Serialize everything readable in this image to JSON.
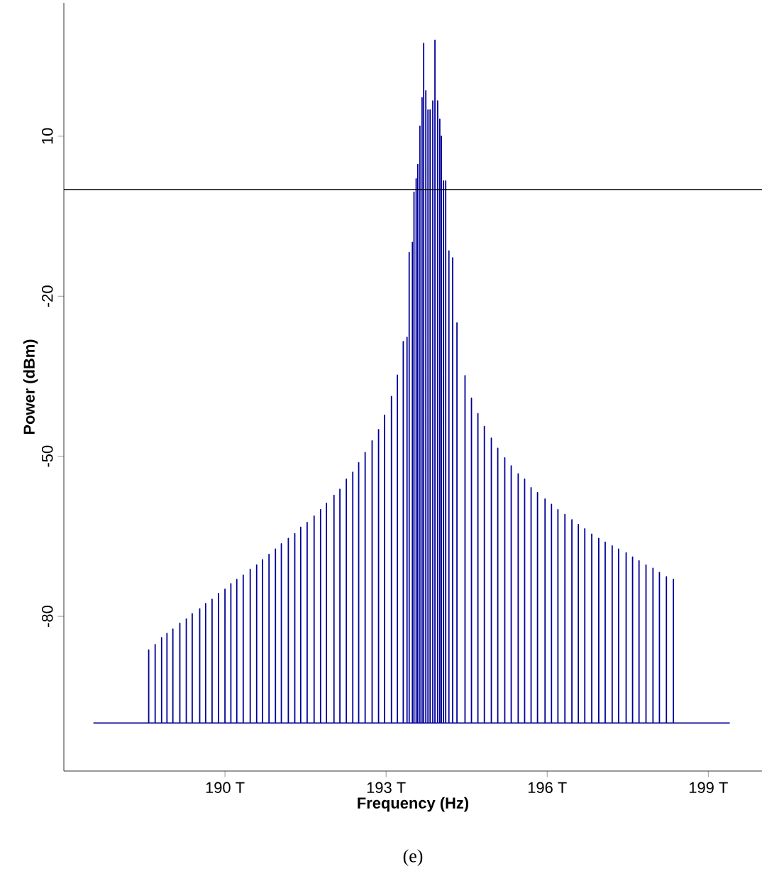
{
  "chart_data": {
    "type": "line",
    "xlabel": "Frequency (Hz)",
    "ylabel": "Power (dBm)",
    "annotations": [
      "(e)"
    ],
    "xlim": [
      187,
      200
    ],
    "ylim": [
      -109,
      35
    ],
    "xticks": [
      {
        "value": 190,
        "label": "190 T"
      },
      {
        "value": 193,
        "label": "193 T"
      },
      {
        "value": 196,
        "label": "196 T"
      },
      {
        "value": 199,
        "label": "199 T"
      }
    ],
    "yticks": [
      10,
      -20,
      -50,
      -80
    ],
    "ref_lines": [
      {
        "axis": "y",
        "value": 0,
        "color": "#000000"
      }
    ],
    "grid": false,
    "marker": "none",
    "line_style": "solid",
    "series": [
      {
        "color": "#000099",
        "x": [
          187.55,
          188.58,
          188.58,
          188.58,
          188.7,
          188.7,
          188.7,
          188.82,
          188.82,
          188.82,
          188.92,
          188.92,
          188.92,
          189.03,
          189.03,
          189.03,
          189.16,
          189.16,
          189.16,
          189.28,
          189.28,
          189.28,
          189.39,
          189.39,
          189.39,
          189.53,
          189.53,
          189.53,
          189.64,
          189.64,
          189.64,
          189.76,
          189.76,
          189.76,
          189.88,
          189.88,
          189.88,
          190.0,
          190.0,
          190.0,
          190.11,
          190.11,
          190.11,
          190.22,
          190.22,
          190.22,
          190.34,
          190.34,
          190.34,
          190.47,
          190.47,
          190.47,
          190.59,
          190.59,
          190.59,
          190.7,
          190.7,
          190.7,
          190.82,
          190.82,
          190.82,
          190.94,
          190.94,
          190.94,
          191.05,
          191.05,
          191.05,
          191.18,
          191.18,
          191.18,
          191.3,
          191.3,
          191.3,
          191.41,
          191.41,
          191.41,
          191.53,
          191.53,
          191.53,
          191.66,
          191.66,
          191.66,
          191.78,
          191.78,
          191.78,
          191.89,
          191.89,
          191.89,
          192.03,
          192.03,
          192.03,
          192.14,
          192.14,
          192.14,
          192.26,
          192.26,
          192.26,
          192.38,
          192.38,
          192.38,
          192.49,
          192.49,
          192.49,
          192.61,
          192.61,
          192.61,
          192.74,
          192.74,
          192.74,
          192.86,
          192.86,
          192.86,
          192.97,
          192.97,
          192.97,
          193.1,
          193.1,
          193.1,
          193.21,
          193.21,
          193.21,
          193.32,
          193.32,
          193.32,
          193.39,
          193.39,
          193.39,
          193.43,
          193.43,
          193.43,
          193.49,
          193.49,
          193.49,
          193.52,
          193.52,
          193.52,
          193.56,
          193.56,
          193.56,
          193.59,
          193.59,
          193.59,
          193.63,
          193.63,
          193.63,
          193.67,
          193.67,
          193.67,
          193.7,
          193.7,
          193.7,
          193.74,
          193.74,
          193.74,
          193.78,
          193.78,
          193.78,
          193.82,
          193.82,
          193.82,
          193.87,
          193.87,
          193.87,
          193.91,
          193.91,
          193.91,
          193.96,
          193.96,
          193.96,
          194.0,
          194.0,
          194.0,
          194.03,
          194.03,
          194.03,
          194.07,
          194.07,
          194.07,
          194.11,
          194.11,
          194.11,
          194.17,
          194.17,
          194.17,
          194.24,
          194.24,
          194.24,
          194.32,
          194.32,
          194.32,
          194.47,
          194.47,
          194.47,
          194.59,
          194.59,
          194.59,
          194.71,
          194.71,
          194.71,
          194.83,
          194.83,
          194.83,
          194.96,
          194.96,
          194.96,
          195.08,
          195.08,
          195.08,
          195.21,
          195.21,
          195.21,
          195.33,
          195.33,
          195.33,
          195.46,
          195.46,
          195.46,
          195.58,
          195.58,
          195.58,
          195.7,
          195.7,
          195.7,
          195.82,
          195.82,
          195.82,
          195.96,
          195.96,
          195.96,
          196.08,
          196.08,
          196.08,
          196.2,
          196.2,
          196.2,
          196.33,
          196.33,
          196.33,
          196.46,
          196.46,
          196.46,
          196.58,
          196.58,
          196.58,
          196.7,
          196.7,
          196.7,
          196.83,
          196.83,
          196.83,
          196.96,
          196.96,
          196.96,
          197.08,
          197.08,
          197.08,
          197.21,
          197.21,
          197.21,
          197.33,
          197.33,
          197.33,
          197.47,
          197.47,
          197.47,
          197.59,
          197.59,
          197.59,
          197.71,
          197.71,
          197.71,
          197.84,
          197.84,
          197.84,
          197.97,
          197.97,
          197.97,
          198.09,
          198.09,
          198.09,
          198.22,
          198.22,
          198.22,
          198.35,
          198.35,
          198.35,
          199.4
        ],
        "values": [
          -100,
          -100,
          -86.3,
          -100,
          -100,
          -85.3,
          -100,
          -100,
          -84.0,
          -100,
          -100,
          -83.2,
          -100,
          -100,
          -82.4,
          -100,
          -100,
          -81.3,
          -100,
          -100,
          -80.5,
          -100,
          -100,
          -79.5,
          -100,
          -100,
          -78.6,
          -100,
          -100,
          -77.6,
          -100,
          -100,
          -76.8,
          -100,
          -100,
          -75.7,
          -100,
          -100,
          -74.9,
          -100,
          -100,
          -73.9,
          -100,
          -100,
          -73.1,
          -100,
          -100,
          -72.3,
          -100,
          -100,
          -71.2,
          -100,
          -100,
          -70.4,
          -100,
          -100,
          -69.4,
          -100,
          -100,
          -68.4,
          -100,
          -100,
          -67.4,
          -100,
          -100,
          -66.4,
          -100,
          -100,
          -65.4,
          -100,
          -100,
          -64.5,
          -100,
          -100,
          -63.3,
          -100,
          -100,
          -62.4,
          -100,
          -100,
          -61.2,
          -100,
          -100,
          -60.0,
          -100,
          -100,
          -58.8,
          -100,
          -100,
          -57.3,
          -100,
          -100,
          -56.2,
          -100,
          -100,
          -54.3,
          -100,
          -100,
          -53.0,
          -100,
          -100,
          -51.2,
          -100,
          -100,
          -49.3,
          -100,
          -100,
          -47.1,
          -100,
          -100,
          -45.0,
          -100,
          -100,
          -42.3,
          -100,
          -100,
          -38.8,
          -100,
          -100,
          -34.8,
          -100,
          -100,
          -28.5,
          -100,
          -100,
          -27.7,
          -100,
          -100,
          -11.8,
          -100,
          -100,
          -9.9,
          -100,
          -100,
          -0.5,
          -100,
          -100,
          2.0,
          -100,
          -100,
          4.7,
          -100,
          -100,
          11.9,
          -100,
          -100,
          17.2,
          -100,
          -100,
          27.4,
          -100,
          -100,
          18.5,
          -100,
          -100,
          14.9,
          -100,
          -100,
          14.9,
          -100,
          -100,
          16.6,
          -100,
          -100,
          28.0,
          -100,
          -100,
          16.6,
          -100,
          -100,
          13.2,
          -100,
          -100,
          10.0,
          -100,
          -100,
          1.6,
          -100,
          -100,
          1.6,
          -100,
          -100,
          -11.5,
          -100,
          -100,
          -12.8,
          -100,
          -100,
          -25.0,
          -100,
          -100,
          -34.9,
          -100,
          -100,
          -39.1,
          -100,
          -100,
          -42.0,
          -100,
          -100,
          -44.4,
          -100,
          -100,
          -46.6,
          -100,
          -100,
          -48.5,
          -100,
          -100,
          -50.3,
          -100,
          -100,
          -51.8,
          -100,
          -100,
          -53.3,
          -100,
          -100,
          -54.3,
          -100,
          -100,
          -55.9,
          -100,
          -100,
          -56.8,
          -100,
          -100,
          -58.0,
          -100,
          -100,
          -59.0,
          -100,
          -100,
          -60.0,
          -100,
          -100,
          -60.9,
          -100,
          -100,
          -61.9,
          -100,
          -100,
          -62.8,
          -100,
          -100,
          -63.6,
          -100,
          -100,
          -64.6,
          -100,
          -100,
          -65.4,
          -100,
          -100,
          -66.1,
          -100,
          -100,
          -66.8,
          -100,
          -100,
          -67.4,
          -100,
          -100,
          -68.1,
          -100,
          -100,
          -68.9,
          -100,
          -100,
          -69.6,
          -100,
          -100,
          -70.4,
          -100,
          -100,
          -71.0,
          -100,
          -100,
          -71.8,
          -100,
          -100,
          -72.6,
          -100,
          -100,
          -73.1,
          -100,
          -100
        ]
      }
    ]
  }
}
